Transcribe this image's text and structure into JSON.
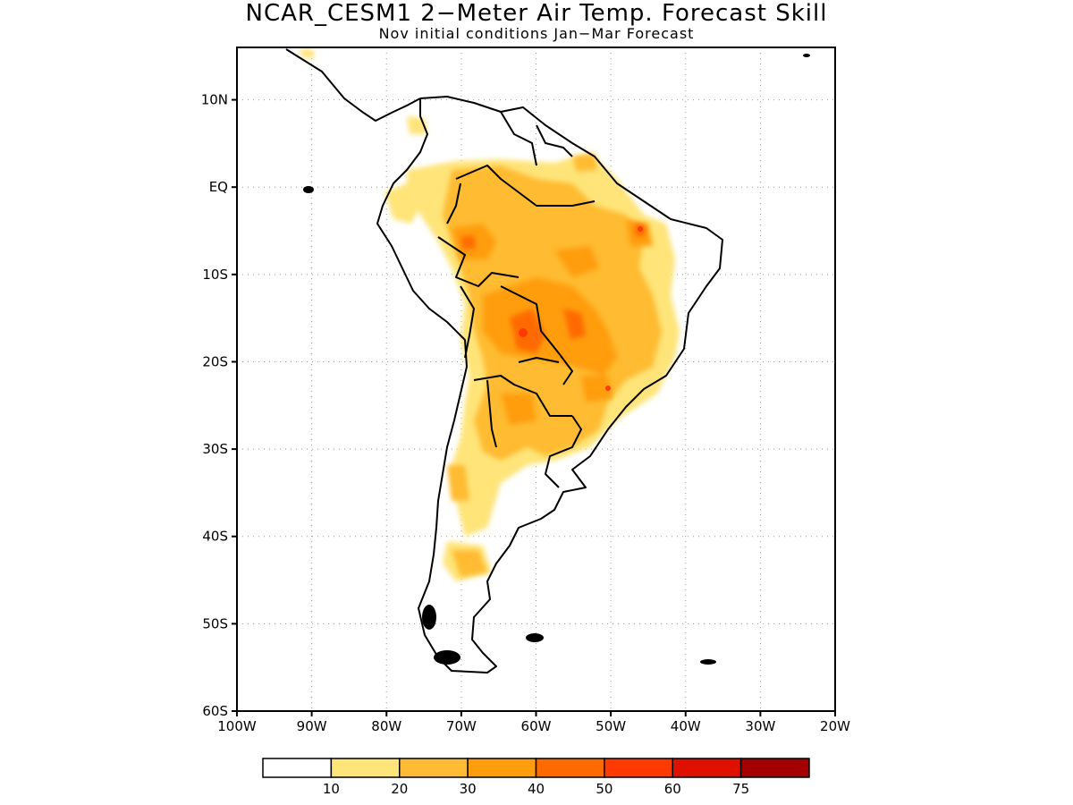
{
  "title": "NCAR_CESM1 2−Meter Air Temp. Forecast Skill",
  "subtitle": "Nov initial conditions  Jan−Mar Forecast",
  "map": {
    "lon_range": [
      -100,
      -20
    ],
    "lat_range": [
      -60,
      16
    ],
    "lat_ticks": [
      {
        "value": 10,
        "label": "10N"
      },
      {
        "value": 0,
        "label": "EQ"
      },
      {
        "value": -10,
        "label": "10S"
      },
      {
        "value": -20,
        "label": "20S"
      },
      {
        "value": -30,
        "label": "30S"
      },
      {
        "value": -40,
        "label": "40S"
      },
      {
        "value": -50,
        "label": "50S"
      },
      {
        "value": -60,
        "label": "60S"
      }
    ],
    "lon_ticks": [
      {
        "value": -100,
        "label": "100W"
      },
      {
        "value": -90,
        "label": "90W"
      },
      {
        "value": -80,
        "label": "80W"
      },
      {
        "value": -70,
        "label": "70W"
      },
      {
        "value": -60,
        "label": "60W"
      },
      {
        "value": -50,
        "label": "50W"
      },
      {
        "value": -40,
        "label": "40W"
      },
      {
        "value": -30,
        "label": "30W"
      },
      {
        "value": -20,
        "label": "20W"
      }
    ],
    "grid": "dotted"
  },
  "colorbar": {
    "colors": [
      "#ffffff",
      "#ffe479",
      "#ffbb33",
      "#ff9d0d",
      "#ff6a00",
      "#ff3a00",
      "#e01000",
      "#a50000"
    ],
    "labels": [
      "10",
      "20",
      "30",
      "40",
      "50",
      "60",
      "75"
    ]
  }
}
